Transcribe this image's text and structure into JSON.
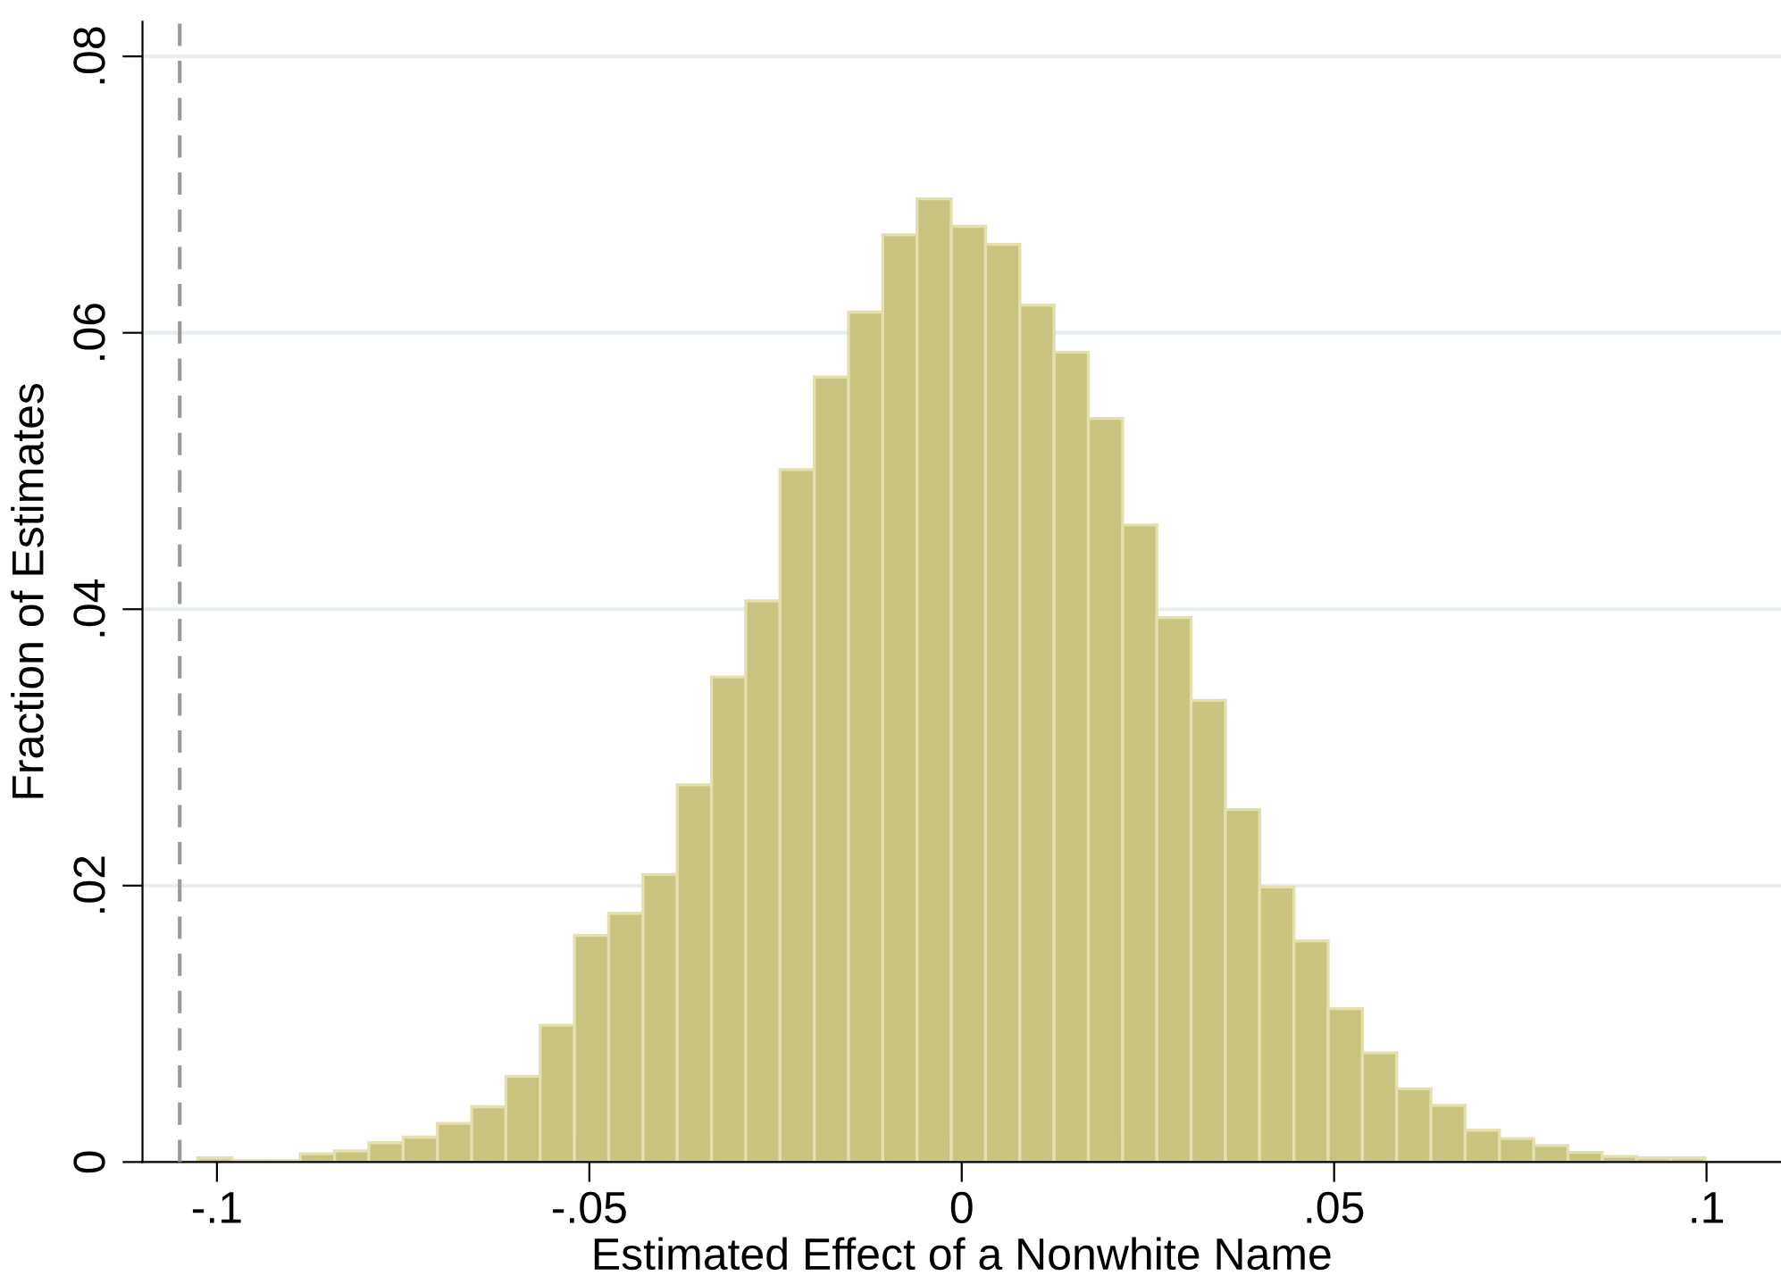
{
  "chart_data": {
    "type": "histogram",
    "xlabel": "Estimated Effect of a Nonwhite Name",
    "ylabel": "Fraction of Estimates",
    "bins": [
      -0.1026,
      -0.098,
      -0.0934,
      -0.0888,
      -0.0842,
      -0.0796,
      -0.075,
      -0.0704,
      -0.0658,
      -0.0612,
      -0.0566,
      -0.052,
      -0.0474,
      -0.0428,
      -0.0382,
      -0.0336,
      -0.029,
      -0.0244,
      -0.0198,
      -0.0152,
      -0.0106,
      -0.006,
      -0.0014,
      0.0032,
      0.0078,
      0.0124,
      0.017,
      0.0216,
      0.0262,
      0.0308,
      0.0354,
      0.04,
      0.0446,
      0.0492,
      0.0538,
      0.0584,
      0.063,
      0.0676,
      0.0722,
      0.0768,
      0.0814,
      0.086,
      0.0906,
      0.0952,
      0.0998
    ],
    "values": [
      0.0003,
      0.0001,
      0.0001,
      0.0006,
      0.0008,
      0.0014,
      0.0018,
      0.0028,
      0.004,
      0.0062,
      0.0099,
      0.0164,
      0.018,
      0.0208,
      0.0273,
      0.0351,
      0.0406,
      0.0501,
      0.0568,
      0.0615,
      0.0671,
      0.0697,
      0.0677,
      0.0664,
      0.062,
      0.0586,
      0.0538,
      0.0461,
      0.0394,
      0.0334,
      0.0255,
      0.0199,
      0.016,
      0.0111,
      0.0079,
      0.0053,
      0.0041,
      0.0023,
      0.0017,
      0.0012,
      0.0007,
      0.0004,
      0.0003,
      0.0003
    ],
    "color": "#c9c380",
    "xlim": [
      -0.11,
      0.11
    ],
    "ylim": [
      0,
      0.0825
    ],
    "xticks": [
      {
        "value": -0.1,
        "label": "-.1"
      },
      {
        "value": -0.05,
        "label": "-.05"
      },
      0,
      {
        "value": 0.05,
        "label": ".05"
      },
      {
        "value": 0.1,
        "label": ".1"
      }
    ],
    "yticks": [
      0,
      {
        "value": 0.02,
        "label": ".02"
      },
      {
        "value": 0.04,
        "label": ".04"
      },
      {
        "value": 0.06,
        "label": ".06"
      },
      {
        "value": 0.08,
        "label": ".08"
      }
    ],
    "grid": "y",
    "ref_lines": [
      {
        "axis": "x",
        "value": -0.105,
        "label": null,
        "color": "#999999",
        "line_style": "dashed"
      }
    ]
  }
}
